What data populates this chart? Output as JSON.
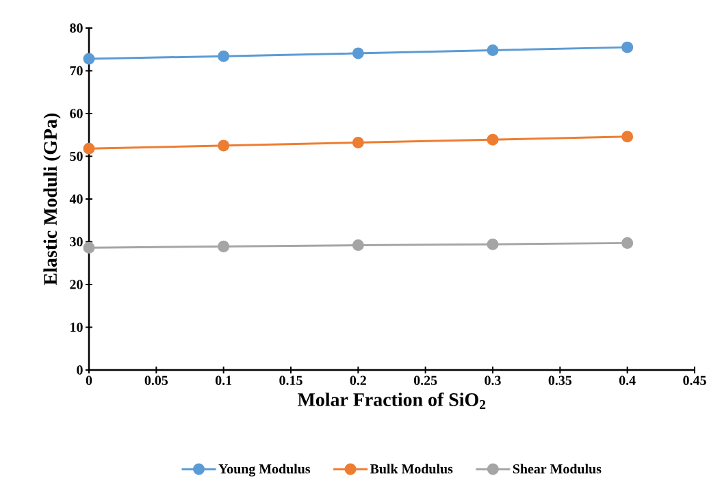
{
  "chart_data": {
    "type": "line",
    "xlabel": "Molar Fraction of SiO$_{2}$",
    "ylabel": "Elastic Moduli (GPa)",
    "x": [
      0,
      0.1,
      0.2,
      0.3,
      0.4
    ],
    "series": [
      {
        "name": "Young Modulus",
        "color": "#5b9bd5",
        "values": [
          72.8,
          73.4,
          74.1,
          74.8,
          75.5
        ]
      },
      {
        "name": "Bulk Modulus",
        "color": "#ed7d31",
        "values": [
          51.8,
          52.5,
          53.2,
          53.9,
          54.6
        ]
      },
      {
        "name": "Shear Modulus",
        "color": "#a5a5a5",
        "values": [
          28.6,
          28.9,
          29.2,
          29.4,
          29.7
        ]
      }
    ],
    "xlim": [
      0,
      0.45
    ],
    "ylim": [
      0,
      80
    ],
    "xticks": [
      0,
      0.05,
      0.1,
      0.15,
      0.2,
      0.25,
      0.3,
      0.35,
      0.4,
      0.45
    ],
    "yticks": [
      0,
      10,
      20,
      30,
      40,
      50,
      60,
      70,
      80
    ],
    "grid": false,
    "legend": "bottom",
    "marker": "circle",
    "line_style": "solid"
  }
}
